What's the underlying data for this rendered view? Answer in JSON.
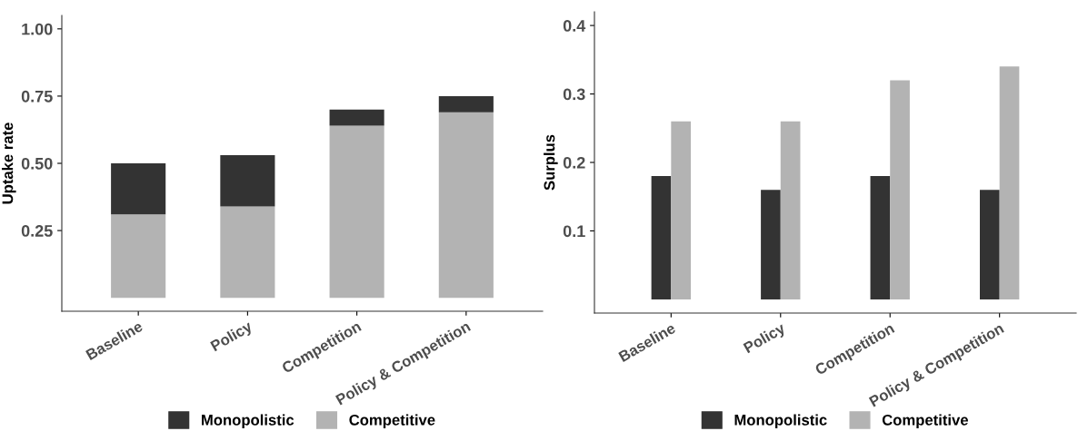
{
  "chart_data": [
    {
      "type": "bar",
      "stacked": true,
      "ylabel": "Uptake rate",
      "categories": [
        "Baseline",
        "Policy",
        "Competition",
        "Policy & Competition"
      ],
      "series": [
        {
          "name": "Competitive",
          "color": "#b3b3b3",
          "values": [
            0.31,
            0.34,
            0.64,
            0.69
          ]
        },
        {
          "name": "Monopolistic",
          "color": "#333333",
          "values": [
            0.19,
            0.19,
            0.06,
            0.06
          ]
        }
      ],
      "ylim": [
        -0.05,
        1.05
      ],
      "yticks": [
        0.25,
        {
          "value": 0.5,
          "label": "0.50"
        },
        {
          "value": 0.75,
          "label": "0.75"
        },
        {
          "value": 1.0,
          "label": "1.00"
        }
      ],
      "grid": false,
      "legend": "bottom"
    },
    {
      "type": "bar",
      "ylabel": "Surplus",
      "categories": [
        "Baseline",
        "Policy",
        "Competition",
        "Policy & Competition"
      ],
      "series": [
        {
          "name": "Monopolistic",
          "color": "#333333",
          "values": [
            0.18,
            0.16,
            0.18,
            0.16
          ]
        },
        {
          "name": "Competitive",
          "color": "#b3b3b3",
          "values": [
            0.26,
            0.26,
            0.32,
            0.34
          ]
        }
      ],
      "ylim": [
        -0.02,
        0.42
      ],
      "yticks": [
        0.1,
        0.2,
        0.3,
        0.4
      ],
      "grid": false,
      "legend": "bottom"
    }
  ]
}
